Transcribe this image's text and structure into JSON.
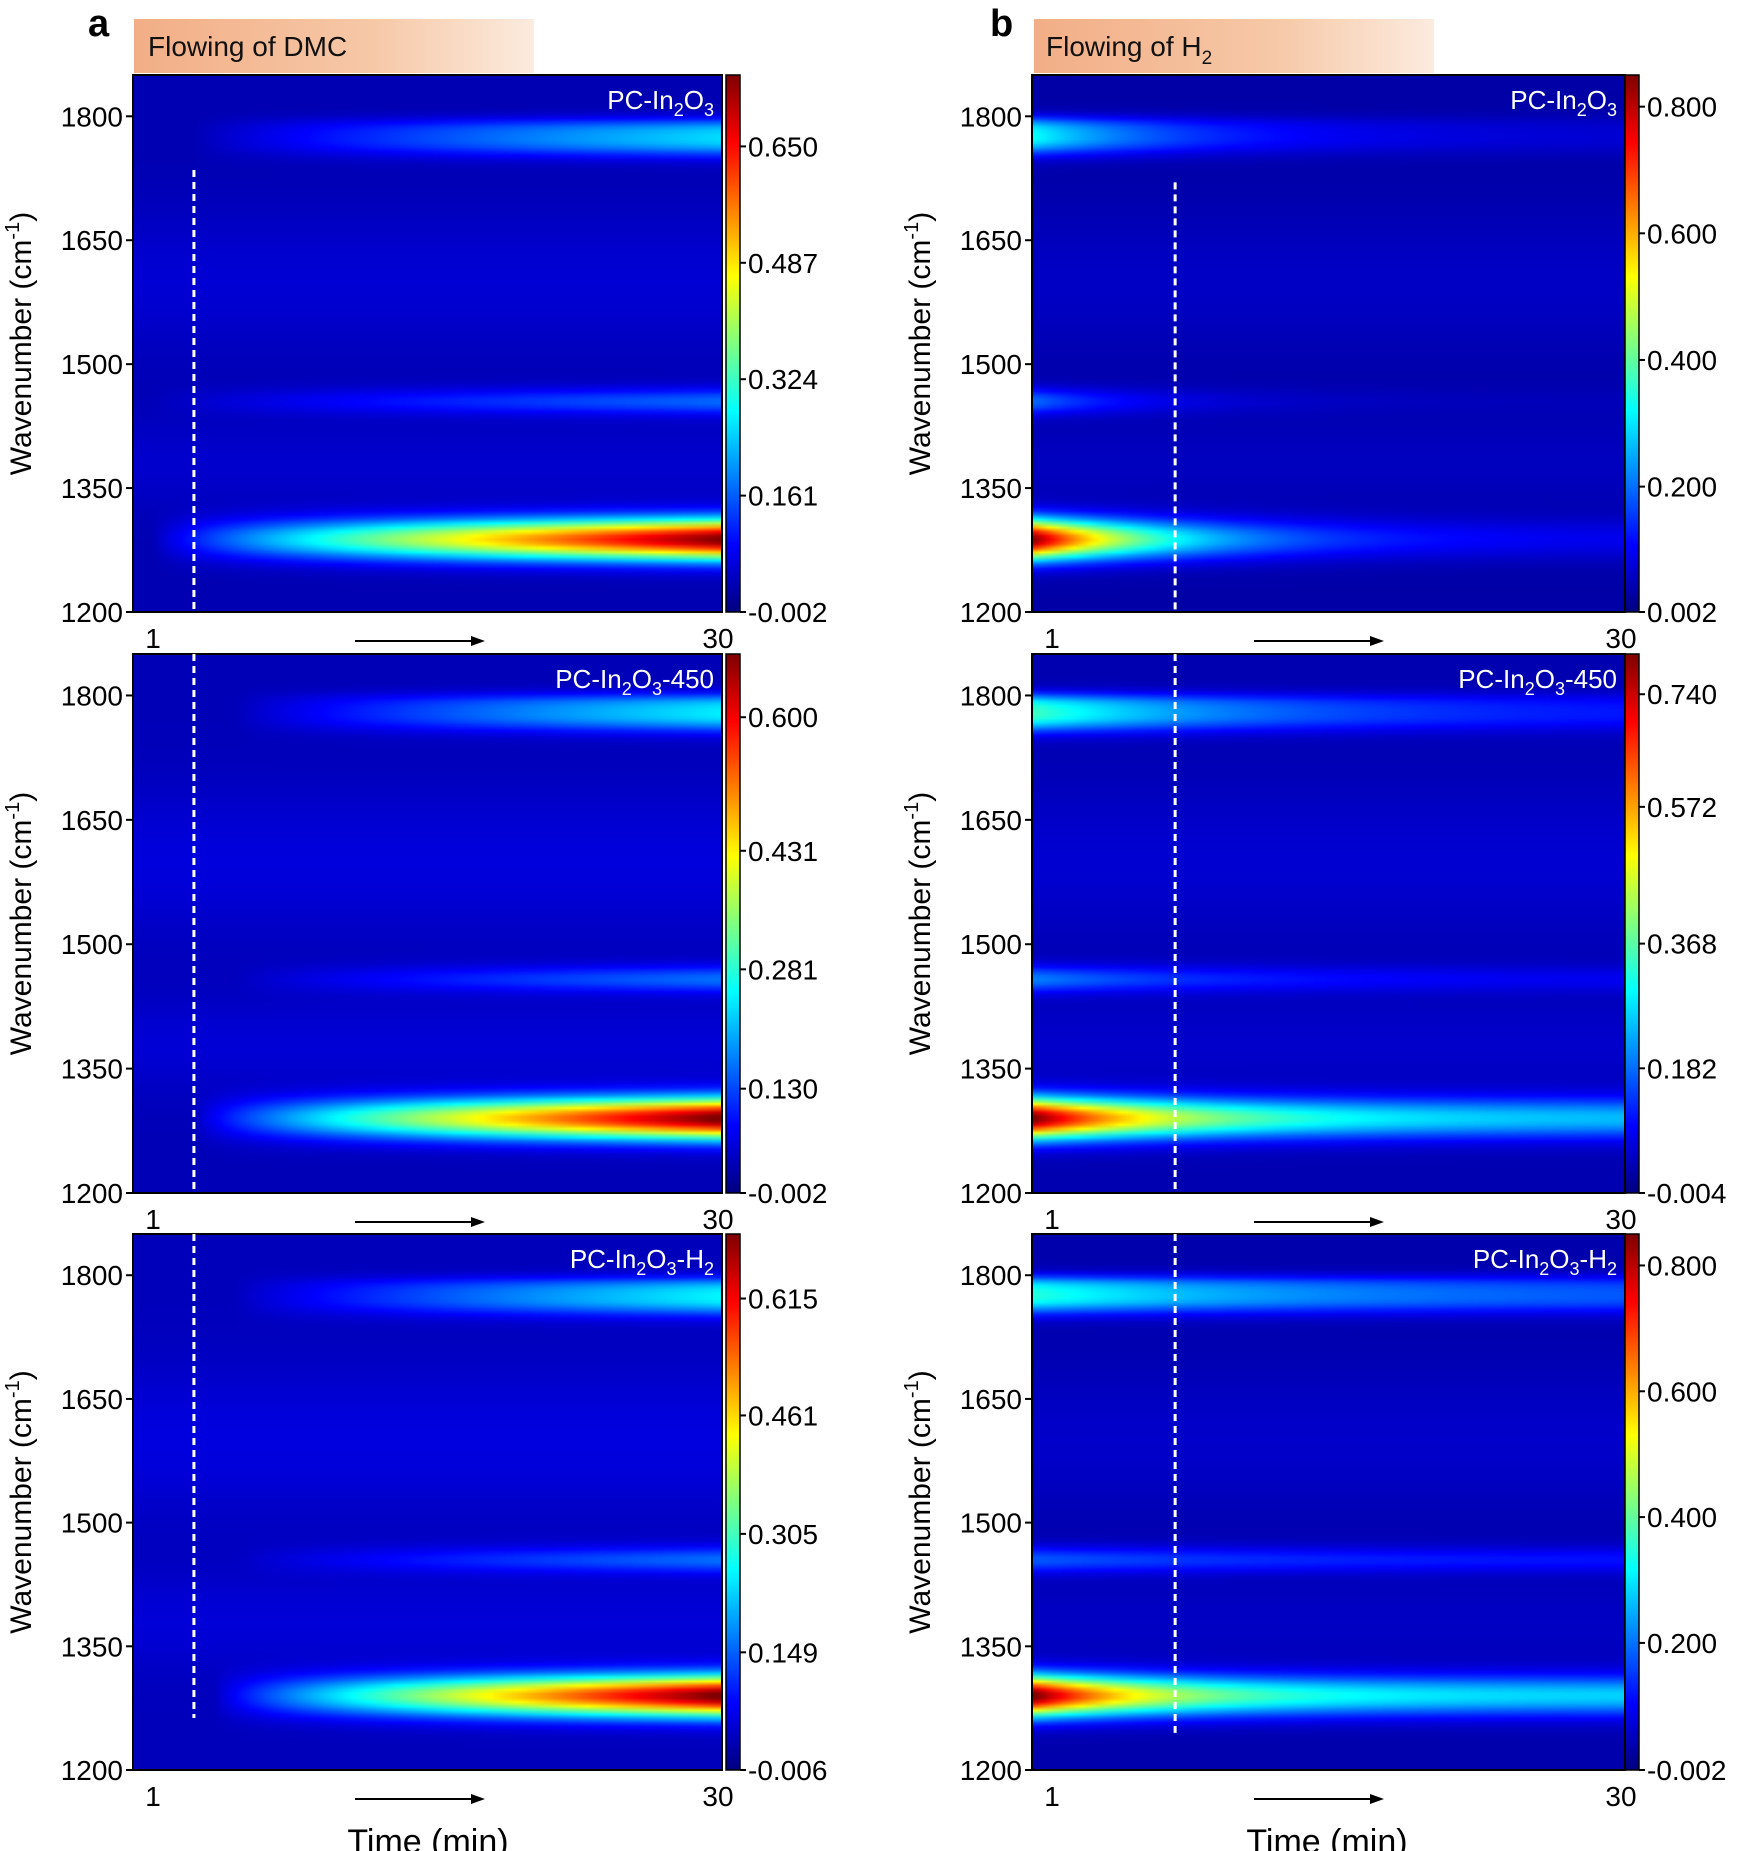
{
  "figure": {
    "column_a": {
      "letter": "a",
      "condition_prefix": "Flowing of DMC",
      "condition_sub": "",
      "condition_suffix": ""
    },
    "column_b": {
      "letter": "b",
      "condition_prefix": "Flowing of H",
      "condition_sub": "2",
      "condition_suffix": ""
    },
    "ylabel": "Wavenumber (cm",
    "ylabel_sup": "-1",
    "ylabel_end": ")",
    "xlabel": "Time (min)",
    "x_start_label": "1",
    "x_end_label": "30"
  },
  "chart_data": [
    {
      "type": "heatmap",
      "panel": "a",
      "row": 1,
      "title_parts": [
        {
          "t": "PC-In"
        },
        {
          "t": "2",
          "sub": true
        },
        {
          "t": "O"
        },
        {
          "t": "3",
          "sub": true
        }
      ],
      "xlabel": "Time (min)",
      "ylabel": "Wavenumber (cm-1)",
      "xlim": [
        1,
        30
      ],
      "ylim": [
        1200,
        1850
      ],
      "yticks": [
        1200,
        1350,
        1500,
        1650,
        1800
      ],
      "colorbar_ticks": [
        "-0.002",
        "0.161",
        "0.324",
        "0.487",
        "0.650"
      ],
      "colorbar_range": [
        -0.002,
        0.75
      ],
      "dashed_line_time": 4,
      "dashed_line_wavenumber_range": [
        1200,
        1735
      ],
      "bands": [
        {
          "wavenumber": 1288,
          "onset_time": 2,
          "end_intensity": 0.72
        },
        {
          "wavenumber": 1455,
          "onset_time": 2,
          "end_intensity": 0.13
        },
        {
          "wavenumber": 1770,
          "onset_time": 4,
          "end_intensity": 0.21
        }
      ]
    },
    {
      "type": "heatmap",
      "panel": "a",
      "row": 2,
      "title_parts": [
        {
          "t": "PC-In"
        },
        {
          "t": "2",
          "sub": true
        },
        {
          "t": "O"
        },
        {
          "t": "3",
          "sub": true
        },
        {
          "t": "-450"
        }
      ],
      "xlabel": "Time (min)",
      "ylabel": "Wavenumber (cm-1)",
      "xlim": [
        1,
        30
      ],
      "ylim": [
        1200,
        1850
      ],
      "yticks": [
        1200,
        1350,
        1500,
        1650,
        1800
      ],
      "colorbar_ticks": [
        "-0.002",
        "0.130",
        "0.281",
        "0.431",
        "0.600"
      ],
      "colorbar_range": [
        -0.002,
        0.68
      ],
      "dashed_line_time": 4,
      "dashed_line_wavenumber_range": [
        1200,
        1850
      ],
      "bands": [
        {
          "wavenumber": 1290,
          "onset_time": 4,
          "end_intensity": 0.66
        },
        {
          "wavenumber": 1458,
          "onset_time": 6,
          "end_intensity": 0.12
        },
        {
          "wavenumber": 1775,
          "onset_time": 6,
          "end_intensity": 0.2
        }
      ]
    },
    {
      "type": "heatmap",
      "panel": "a",
      "row": 3,
      "title_parts": [
        {
          "t": "PC-In"
        },
        {
          "t": "2",
          "sub": true
        },
        {
          "t": "O"
        },
        {
          "t": "3",
          "sub": true
        },
        {
          "t": "-H"
        },
        {
          "t": "2",
          "sub": true
        }
      ],
      "xlabel": "Time (min)",
      "ylabel": "Wavenumber (cm-1)",
      "xlim": [
        1,
        30
      ],
      "ylim": [
        1200,
        1850
      ],
      "yticks": [
        1200,
        1350,
        1500,
        1650,
        1800
      ],
      "colorbar_ticks": [
        "-0.006",
        "0.149",
        "0.305",
        "0.461",
        "0.615"
      ],
      "colorbar_range": [
        -0.006,
        0.7
      ],
      "dashed_line_time": 4,
      "dashed_line_wavenumber_range": [
        1263,
        1850
      ],
      "bands": [
        {
          "wavenumber": 1290,
          "onset_time": 5,
          "end_intensity": 0.68
        },
        {
          "wavenumber": 1455,
          "onset_time": 6,
          "end_intensity": 0.12
        },
        {
          "wavenumber": 1770,
          "onset_time": 6,
          "end_intensity": 0.21
        }
      ]
    },
    {
      "type": "heatmap",
      "panel": "b",
      "row": 1,
      "title_parts": [
        {
          "t": "PC-In"
        },
        {
          "t": "2",
          "sub": true
        },
        {
          "t": "O"
        },
        {
          "t": "3",
          "sub": true
        }
      ],
      "xlabel": "Time (min)",
      "ylabel": "Wavenumber (cm-1)",
      "xlim": [
        1,
        30
      ],
      "ylim": [
        1200,
        1850
      ],
      "yticks": [
        1200,
        1350,
        1500,
        1650,
        1800
      ],
      "colorbar_ticks": [
        "0.002",
        "0.200",
        "0.400",
        "0.600",
        "0.800"
      ],
      "colorbar_range": [
        0.002,
        0.85
      ],
      "dashed_line_time": 8,
      "dashed_line_wavenumber_range": [
        1200,
        1720
      ],
      "bands": [
        {
          "wavenumber": 1288,
          "start_intensity": 0.82,
          "decay": 6,
          "floor": 0.05
        },
        {
          "wavenumber": 1455,
          "start_intensity": 0.16,
          "decay": 5,
          "floor": 0.01
        },
        {
          "wavenumber": 1772,
          "start_intensity": 0.28,
          "decay": 7,
          "floor": 0.03
        }
      ]
    },
    {
      "type": "heatmap",
      "panel": "b",
      "row": 2,
      "title_parts": [
        {
          "t": "PC-In"
        },
        {
          "t": "2",
          "sub": true
        },
        {
          "t": "O"
        },
        {
          "t": "3",
          "sub": true
        },
        {
          "t": "-450"
        }
      ],
      "xlabel": "Time (min)",
      "ylabel": "Wavenumber (cm-1)",
      "xlim": [
        1,
        30
      ],
      "ylim": [
        1200,
        1850
      ],
      "yticks": [
        1200,
        1350,
        1500,
        1650,
        1800
      ],
      "colorbar_ticks": [
        "-0.004",
        "0.182",
        "0.368",
        "0.572",
        "0.740"
      ],
      "colorbar_range": [
        -0.004,
        0.8
      ],
      "dashed_line_time": 8,
      "dashed_line_wavenumber_range": [
        1200,
        1850
      ],
      "bands": [
        {
          "wavenumber": 1290,
          "start_intensity": 0.78,
          "decay": 7,
          "floor": 0.2
        },
        {
          "wavenumber": 1458,
          "start_intensity": 0.16,
          "decay": 9,
          "floor": 0.04
        },
        {
          "wavenumber": 1775,
          "start_intensity": 0.3,
          "decay": 10,
          "floor": 0.06
        }
      ]
    },
    {
      "type": "heatmap",
      "panel": "b",
      "row": 3,
      "title_parts": [
        {
          "t": "PC-In"
        },
        {
          "t": "2",
          "sub": true
        },
        {
          "t": "O"
        },
        {
          "t": "3",
          "sub": true
        },
        {
          "t": "-H"
        },
        {
          "t": "2",
          "sub": true
        }
      ],
      "xlabel": "Time (min)",
      "ylabel": "Wavenumber (cm-1)",
      "xlim": [
        1,
        30
      ],
      "ylim": [
        1200,
        1850
      ],
      "yticks": [
        1200,
        1350,
        1500,
        1650,
        1800
      ],
      "colorbar_ticks": [
        "-0.002",
        "0.200",
        "0.400",
        "0.600",
        "0.800"
      ],
      "colorbar_range": [
        -0.002,
        0.85
      ],
      "dashed_line_time": 8,
      "dashed_line_wavenumber_range": [
        1245,
        1850
      ],
      "bands": [
        {
          "wavenumber": 1290,
          "start_intensity": 0.84,
          "decay": 6,
          "floor": 0.24
        },
        {
          "wavenumber": 1455,
          "start_intensity": 0.14,
          "decay": 12,
          "floor": 0.07
        },
        {
          "wavenumber": 1772,
          "start_intensity": 0.3,
          "decay": 12,
          "floor": 0.12
        }
      ]
    }
  ]
}
